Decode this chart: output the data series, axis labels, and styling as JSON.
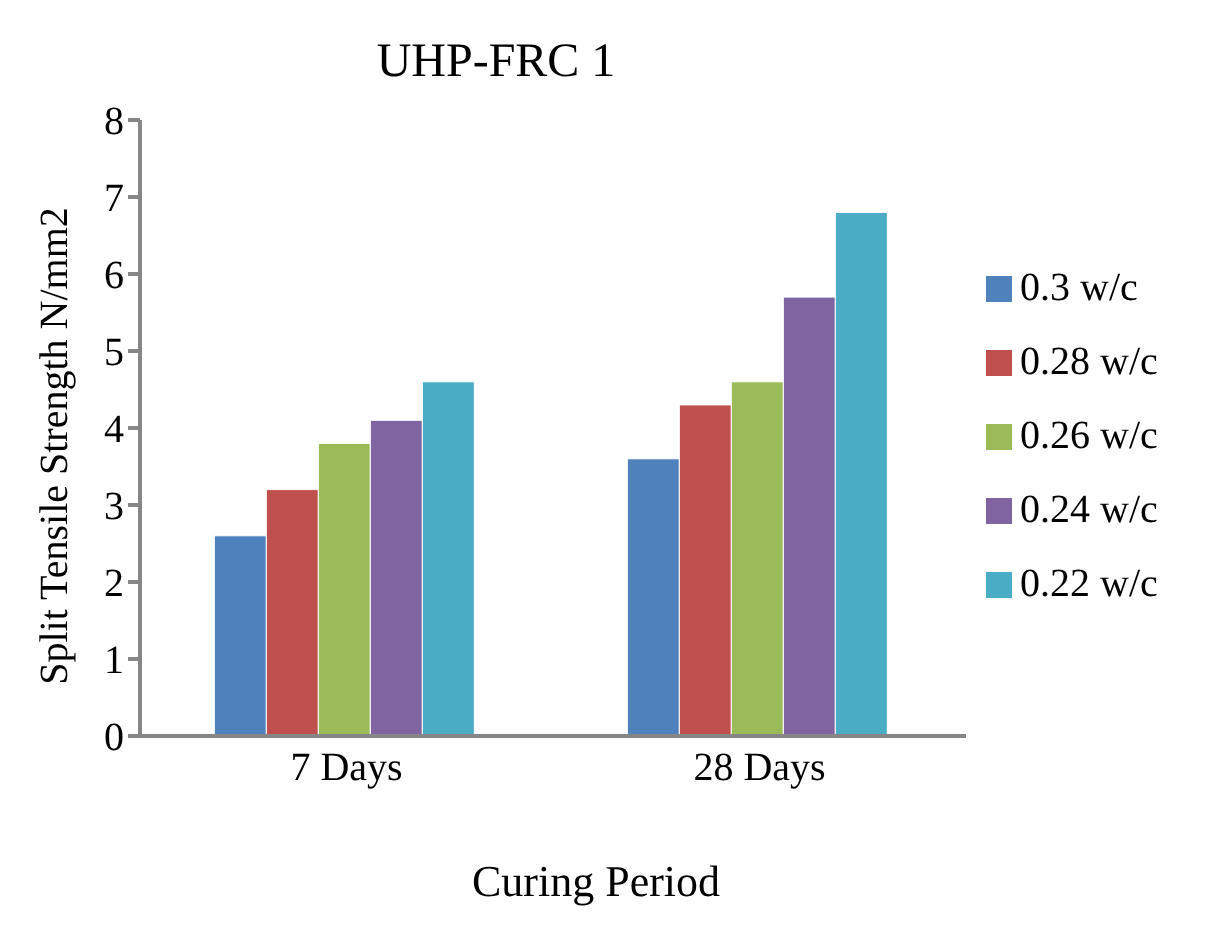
{
  "chart_data": {
    "type": "bar",
    "title": "UHP-FRC 1",
    "xlabel": "Curing Period",
    "ylabel": "Split Tensile Strength N/mm2",
    "categories": [
      "7 Days",
      "28 Days"
    ],
    "series": [
      {
        "name": "0.3 w/c",
        "color": "#4f81bd",
        "values": [
          2.6,
          3.6
        ]
      },
      {
        "name": "0.28 w/c",
        "color": "#c0504d",
        "values": [
          3.2,
          4.3
        ]
      },
      {
        "name": "0.26 w/c",
        "color": "#9bbb59",
        "values": [
          3.8,
          4.6
        ]
      },
      {
        "name": "0.24 w/c",
        "color": "#8064a2",
        "values": [
          4.1,
          5.7
        ]
      },
      {
        "name": "0.22 w/c",
        "color": "#4bacc6",
        "values": [
          4.6,
          6.8
        ]
      }
    ],
    "ylim": [
      0,
      8
    ],
    "yticks": [
      0,
      1,
      2,
      3,
      4,
      5,
      6,
      7,
      8
    ],
    "grid": false,
    "legend": "right"
  }
}
